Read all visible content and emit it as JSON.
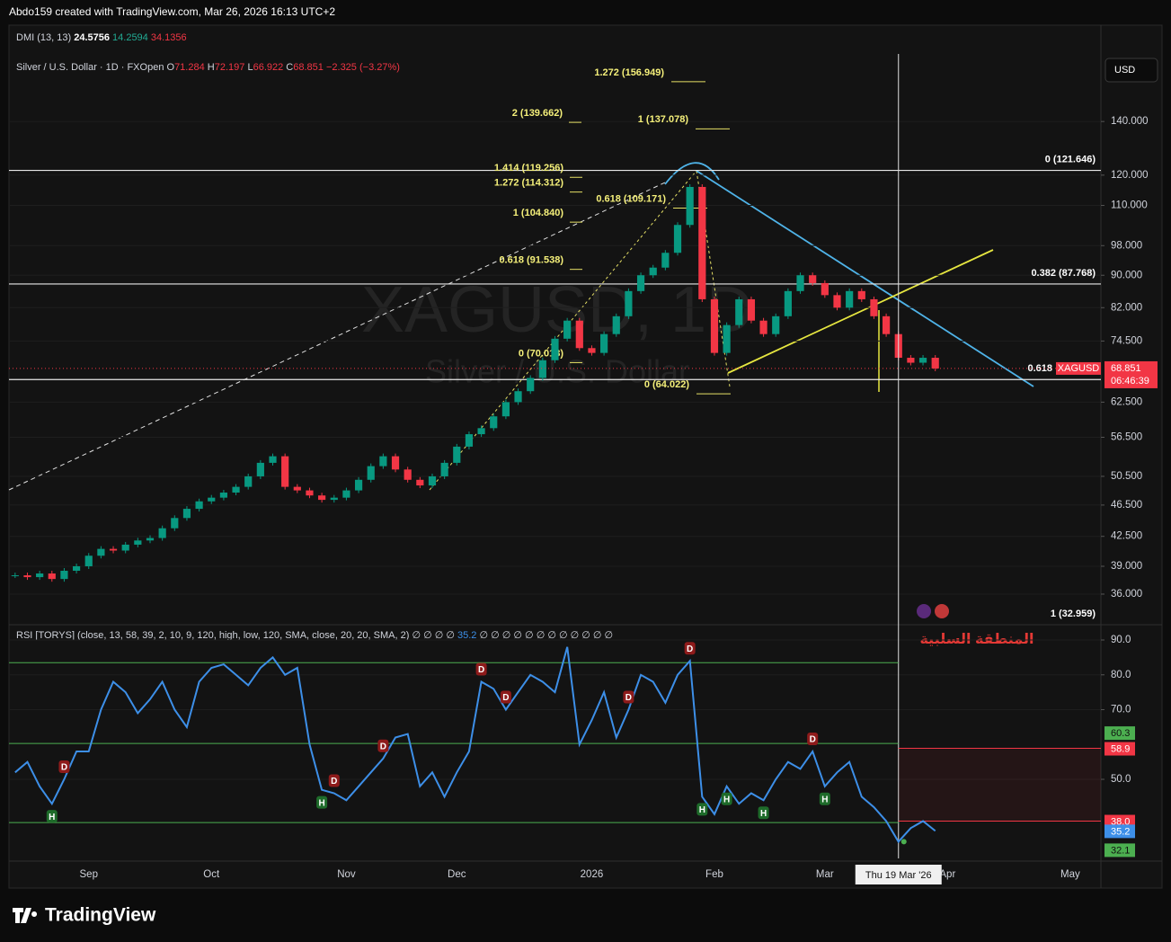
{
  "header": {
    "credit": "Abdo159 created with TradingView.com, Mar 26, 2026 16:13 UTC+2"
  },
  "chart_data": [
    {
      "type": "candlestick",
      "indicator": {
        "name": "DMI (13, 13)",
        "values": [
          24.5756,
          14.2594,
          34.1356
        ]
      },
      "symbol": "Silver / U.S. Dollar · 1D · FXOpen",
      "ohlc": [
        {
          "label": "O",
          "value": 71.284
        },
        {
          "label": "H",
          "value": 72.197
        },
        {
          "label": "L",
          "value": 66.922
        },
        {
          "label": "C",
          "value": 68.851
        }
      ],
      "change": "−2.325 (−3.27%)",
      "watermark": "XAGUSD, 1D",
      "watermark_sub": "Silver / U.S. Dollar",
      "ticker": "XAGUSD",
      "countdown": "06:46:39",
      "currency": "USD",
      "categories": [
        null,
        null,
        null,
        null,
        null,
        null,
        "Sep",
        null,
        null,
        null,
        null,
        null,
        null,
        null,
        null,
        null,
        "Oct",
        null,
        null,
        null,
        null,
        null,
        null,
        null,
        null,
        null,
        null,
        "Nov",
        null,
        null,
        null,
        null,
        null,
        null,
        null,
        null,
        "Dec",
        null,
        null,
        null,
        null,
        null,
        null,
        null,
        null,
        null,
        null,
        "2026",
        null,
        null,
        null,
        null,
        null,
        null,
        null,
        null,
        null,
        "Feb",
        null,
        null,
        null,
        null,
        null,
        null,
        null,
        null,
        "Mar",
        null,
        null,
        null,
        null,
        null,
        null,
        null,
        null,
        null,
        "Apr",
        null,
        null,
        null,
        null,
        null,
        null,
        null,
        null,
        null,
        "May",
        null,
        null
      ],
      "values": [
        38.0,
        37.8,
        38.2,
        37.6,
        38.5,
        39.0,
        40.2,
        41.0,
        40.8,
        41.5,
        42.0,
        42.3,
        43.5,
        44.8,
        46.0,
        47.0,
        47.5,
        48.2,
        49.0,
        50.5,
        52.5,
        53.5,
        49.0,
        48.5,
        47.8,
        47.2,
        47.5,
        48.5,
        50.0,
        52.0,
        53.5,
        51.5,
        50.0,
        49.2,
        50.5,
        52.5,
        55.0,
        57.0,
        58.0,
        60.0,
        62.5,
        64.5,
        67.0,
        70.5,
        75.0,
        79.0,
        73.0,
        72.0,
        76.0,
        80.0,
        86.0,
        90.0,
        92.0,
        96.0,
        104.0,
        116.0,
        84.0,
        72.0,
        78.0,
        84.0,
        79.0,
        76.0,
        80.0,
        86.0,
        90.0,
        88.0,
        85.0,
        82.0,
        86.0,
        84.0,
        80.0,
        76.0,
        71.0,
        70.0,
        71.0,
        68.851,
        null,
        null,
        null,
        null,
        null,
        null,
        null,
        null,
        null,
        null,
        null,
        null,
        null
      ],
      "up_color": "#089981",
      "down_color": "#f23645",
      "ylim": [
        33.4,
        170
      ],
      "log_scale": true,
      "grid": true,
      "yticks": [
        {
          "value": 140,
          "label": "140.000"
        },
        {
          "value": 120,
          "label": "120.000"
        },
        {
          "value": 110,
          "label": "110.000"
        },
        {
          "value": 98,
          "label": "98.000"
        },
        {
          "value": 90,
          "label": "90.000"
        },
        {
          "value": 82,
          "label": "82.000"
        },
        {
          "value": 74.5,
          "label": "74.500"
        },
        {
          "value": 62.5,
          "label": "62.500"
        },
        {
          "value": 56.5,
          "label": "56.500"
        },
        {
          "value": 50.5,
          "label": "50.500"
        },
        {
          "value": 46.5,
          "label": "46.500"
        },
        {
          "value": 42.5,
          "label": "42.500"
        },
        {
          "value": 39,
          "label": "39.000"
        },
        {
          "value": 36,
          "label": "36.000"
        }
      ],
      "fibs": [
        {
          "value": 156.949,
          "label": "1.272 (156.949)"
        },
        {
          "value": 139.662,
          "label": "2 (139.662)"
        },
        {
          "value": 137.078,
          "label": "1 (137.078)"
        },
        {
          "value": 119.256,
          "label": "1.414 (119.256)"
        },
        {
          "value": 114.312,
          "label": "1.272 (114.312)"
        },
        {
          "value": 109.171,
          "label": "0.618 (109.171)"
        },
        {
          "value": 104.84,
          "label": "1 (104.840)"
        },
        {
          "value": 91.538,
          "label": "0.618 (91.538)"
        },
        {
          "value": 70.018,
          "label": "0 (70.018)"
        },
        {
          "value": 64.022,
          "label": "0 (64.022)"
        }
      ],
      "levels": [
        {
          "price": 121.646,
          "label": "0 (121.646)"
        },
        {
          "price": 87.768,
          "label": "0.382 (87.768)"
        },
        {
          "price": 66.7,
          "label": "0.618"
        },
        {
          "price": 32.959,
          "label": "1 (32.959)"
        }
      ],
      "crosshair": {
        "category": 72,
        "label": "Thu 19 Mar '26"
      }
    },
    {
      "type": "line",
      "title": "RSI [TORYS] (close, 13, 58, 39, 2, 10, 9, 120, high, low, 120, SMA, close, 20, 20, SMA, 2)",
      "nulls_before": "∅ ∅ ∅ ∅",
      "nulls_after": "∅ ∅ ∅ ∅ ∅ ∅ ∅ ∅ ∅ ∅ ∅ ∅",
      "color": "#3d8fe8",
      "values": [
        52,
        55,
        48,
        43,
        50,
        58,
        58,
        70,
        78,
        75,
        69,
        73,
        78,
        70,
        65,
        78,
        82,
        83,
        80,
        77,
        82,
        85,
        80,
        82,
        60,
        47,
        46,
        44,
        48,
        52,
        56,
        62,
        63,
        48,
        52,
        45,
        52,
        58,
        78,
        76,
        70,
        75,
        80,
        78,
        75,
        88,
        60,
        67,
        75,
        62,
        70,
        80,
        78,
        72,
        80,
        84,
        45,
        40,
        48,
        43,
        46,
        44,
        50,
        55,
        53,
        58,
        48,
        52,
        55,
        45,
        42,
        38,
        32.1,
        36,
        38,
        35.2,
        null,
        null,
        null,
        null,
        null,
        null,
        null,
        null,
        null,
        null,
        null,
        null,
        null
      ],
      "signals": [
        null,
        null,
        null,
        "H",
        "D",
        null,
        null,
        null,
        null,
        null,
        null,
        null,
        null,
        null,
        null,
        null,
        null,
        null,
        null,
        null,
        null,
        null,
        null,
        null,
        null,
        "H",
        "D",
        null,
        null,
        null,
        "D",
        null,
        null,
        null,
        null,
        null,
        null,
        null,
        "D",
        null,
        "D",
        null,
        null,
        null,
        null,
        null,
        null,
        null,
        null,
        null,
        "D",
        null,
        null,
        null,
        null,
        "D",
        "H",
        null,
        "H",
        null,
        null,
        "H",
        null,
        null,
        null,
        "D",
        "H",
        null,
        null,
        null,
        null,
        null,
        null,
        null,
        null,
        null,
        null,
        null,
        null,
        null,
        null,
        null,
        null,
        null,
        null,
        null,
        null,
        null,
        null
      ],
      "signal_styles": {
        "D": {
          "color": "#8e1b1b",
          "side": "above"
        },
        "H": {
          "color": "#1e6b2a",
          "side": "below"
        }
      },
      "ylim": [
        27.3,
        93.1
      ],
      "grid": true,
      "yticks": [
        {
          "value": 90,
          "label": "90.0"
        },
        {
          "value": 80,
          "label": "80.0"
        },
        {
          "value": 70,
          "label": "70.0"
        },
        {
          "value": 50,
          "label": "50.0"
        }
      ],
      "levels": [
        {
          "value": 83.5
        },
        {
          "value": 60.3,
          "badge": true
        },
        {
          "value": 37.6
        }
      ],
      "level_color": "#4caf50",
      "negative_levels": [
        {
          "value": 58.9
        },
        {
          "value": 38,
          "label": "38.0"
        }
      ],
      "negative_color": "#f23645",
      "zone_label": "المنطقة السلبية"
    }
  ],
  "footer": {
    "brand": "TradingView"
  }
}
